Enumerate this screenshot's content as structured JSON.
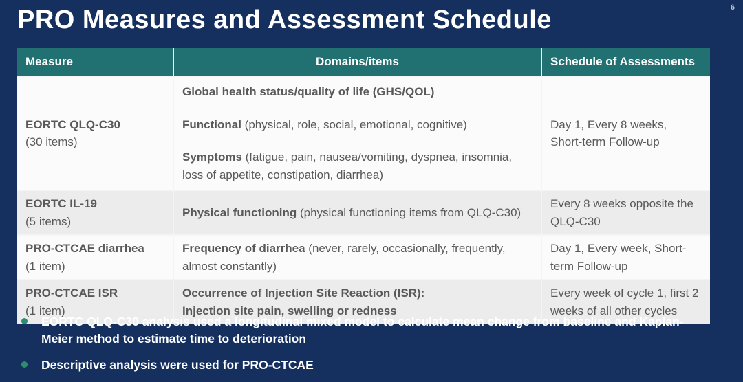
{
  "page": {
    "number": "6",
    "title": "PRO Measures and Assessment Schedule"
  },
  "colors": {
    "background": "#15305e",
    "table_header_bg": "#217173",
    "row_white": "#fbfbfb",
    "row_gray": "#ececec",
    "table_text": "#595959",
    "bullet_dot": "#2e8d6e",
    "title_text": "#ffffff"
  },
  "table": {
    "headers": [
      "Measure",
      "Domains/items",
      "Schedule of Assessments"
    ],
    "rows": [
      {
        "measure": "EORTC QLQ-C30",
        "measure_sub": "(30 items)",
        "domains": [
          {
            "bold": "Global health status/quality of life (GHS/QOL)",
            "rest": ""
          },
          {
            "bold": "Functional",
            "rest": " (physical, role, social, emotional, cognitive)"
          },
          {
            "bold": "Symptoms",
            "rest": " (fatigue, pain, nausea/vomiting, dyspnea, insomnia, loss of appetite, constipation, diarrhea)"
          }
        ],
        "schedule": "Day 1, Every 8 weeks, Short-term Follow-up"
      },
      {
        "measure": "EORTC IL-19",
        "measure_sub": "(5 items)",
        "domains": [
          {
            "bold": "Physical functioning",
            "rest": " (physical functioning items from QLQ-C30)"
          }
        ],
        "schedule": "Every 8 weeks opposite the QLQ-C30"
      },
      {
        "measure": "PRO-CTCAE diarrhea",
        "measure_sub": "(1 item)",
        "domains": [
          {
            "bold": "Frequency of diarrhea",
            "rest": " (never, rarely, occasionally, frequently, almost constantly)"
          }
        ],
        "schedule": "Day 1, Every week, Short-term Follow-up"
      },
      {
        "measure": "PRO-CTCAE ISR",
        "measure_sub": "(1 item)",
        "domains": [
          {
            "bold": "Occurrence of Injection Site Reaction (ISR):",
            "rest": ""
          },
          {
            "bold": "Injection site pain, swelling or redness",
            "rest": ""
          }
        ],
        "schedule": "Every week of cycle 1, first 2 weeks of all other cycles"
      }
    ]
  },
  "bullets": [
    "EORTC QLQ-C30 analysis used a longitudinal mixed model to calculate mean change from baseline and Kaplan-Meier method to estimate time to deterioration",
    "Descriptive analysis were used for PRO-CTCAE"
  ]
}
